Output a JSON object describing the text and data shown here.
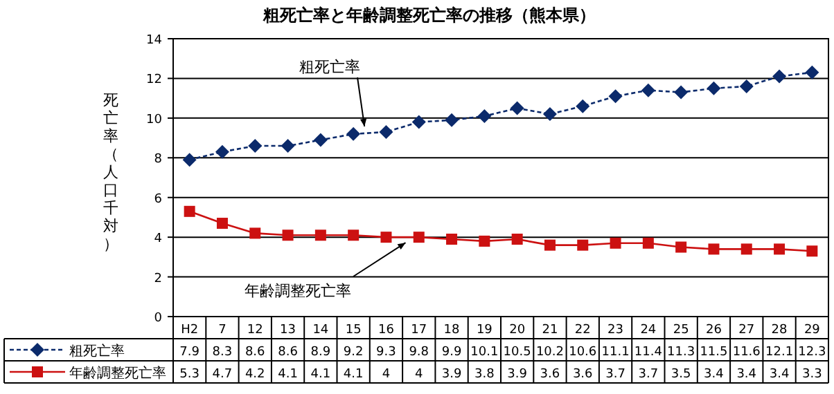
{
  "chart_data": {
    "type": "line",
    "title": "粗死亡率と年齢調整死亡率の推移（熊本県）",
    "ylabel": "死亡率（人口千対）",
    "categories": [
      "H2",
      "7",
      "12",
      "13",
      "14",
      "15",
      "16",
      "17",
      "18",
      "19",
      "20",
      "21",
      "22",
      "23",
      "24",
      "25",
      "26",
      "27",
      "28",
      "29"
    ],
    "series": [
      {
        "name": "粗死亡率",
        "color": "#0b2a6b",
        "marker": "diamond",
        "line_style": "dashed",
        "values": [
          7.9,
          8.3,
          8.6,
          8.6,
          8.9,
          9.2,
          9.3,
          9.8,
          9.9,
          10.1,
          10.5,
          10.2,
          10.6,
          11.1,
          11.4,
          11.3,
          11.5,
          11.6,
          12.1,
          12.3
        ]
      },
      {
        "name": "年齢調整死亡率",
        "color": "#cc1111",
        "marker": "square",
        "line_style": "solid",
        "values": [
          5.3,
          4.7,
          4.2,
          4.1,
          4.1,
          4.1,
          4,
          4,
          3.9,
          3.8,
          3.9,
          3.6,
          3.6,
          3.7,
          3.7,
          3.5,
          3.4,
          3.4,
          3.4,
          3.3
        ]
      }
    ],
    "annotations": [
      "粗死亡率",
      "年齢調整死亡率"
    ],
    "ylim": [
      0,
      14
    ],
    "yticks": [
      0,
      2,
      4,
      6,
      8,
      10,
      12,
      14
    ],
    "grid": "y",
    "legend": "bottom",
    "data_labels": true
  }
}
